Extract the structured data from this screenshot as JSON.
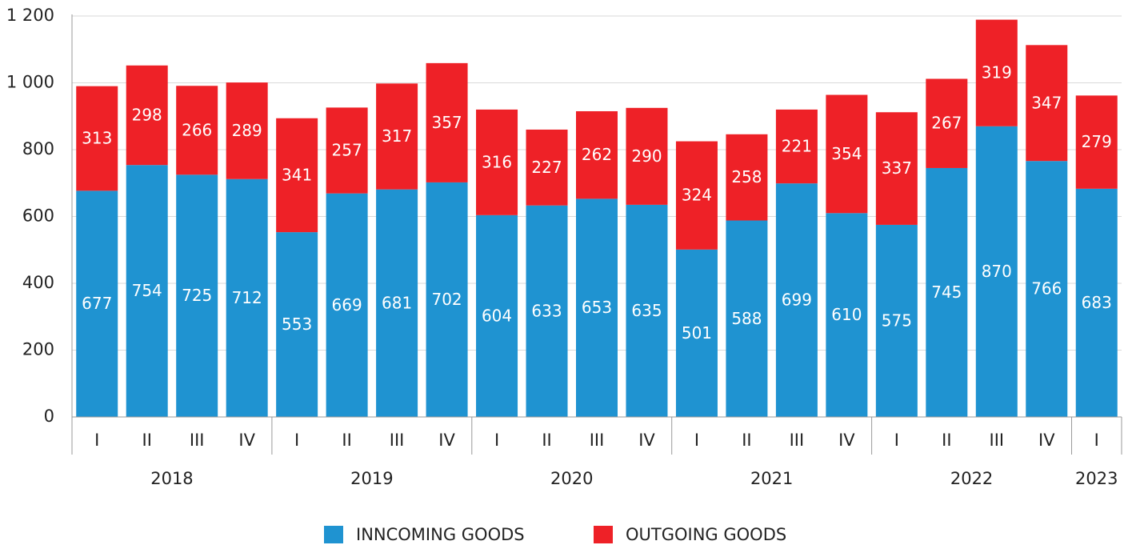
{
  "chart_data": {
    "type": "stacked_bar",
    "categories": [
      "I",
      "II",
      "III",
      "IV",
      "I",
      "II",
      "III",
      "IV",
      "I",
      "II",
      "III",
      "IV",
      "I",
      "II",
      "III",
      "IV",
      "I",
      "II",
      "III",
      "IV",
      "I"
    ],
    "groups": [
      {
        "name": "2018",
        "size": 4
      },
      {
        "name": "2019",
        "size": 4
      },
      {
        "name": "2020",
        "size": 4
      },
      {
        "name": "2021",
        "size": 4
      },
      {
        "name": "2022",
        "size": 4
      },
      {
        "name": "2023",
        "size": 1
      }
    ],
    "series": [
      {
        "name": "INNCOMING GOODS",
        "color": "#1f93d1",
        "values": [
          677,
          754,
          725,
          712,
          553,
          669,
          681,
          702,
          604,
          633,
          653,
          635,
          501,
          588,
          699,
          610,
          575,
          745,
          870,
          766,
          683
        ]
      },
      {
        "name": "OUTGOING GOODS",
        "color": "#ee2127",
        "values": [
          313,
          298,
          266,
          289,
          341,
          257,
          317,
          357,
          316,
          227,
          262,
          290,
          324,
          258,
          221,
          354,
          337,
          267,
          319,
          347,
          279
        ]
      }
    ],
    "ylim": [
      0,
      1200
    ],
    "yticks": [
      0,
      200,
      400,
      600,
      800,
      {
        "value": 1000,
        "label": "1 000"
      },
      {
        "value": 1200,
        "label": "1 200"
      }
    ],
    "grid": true
  }
}
